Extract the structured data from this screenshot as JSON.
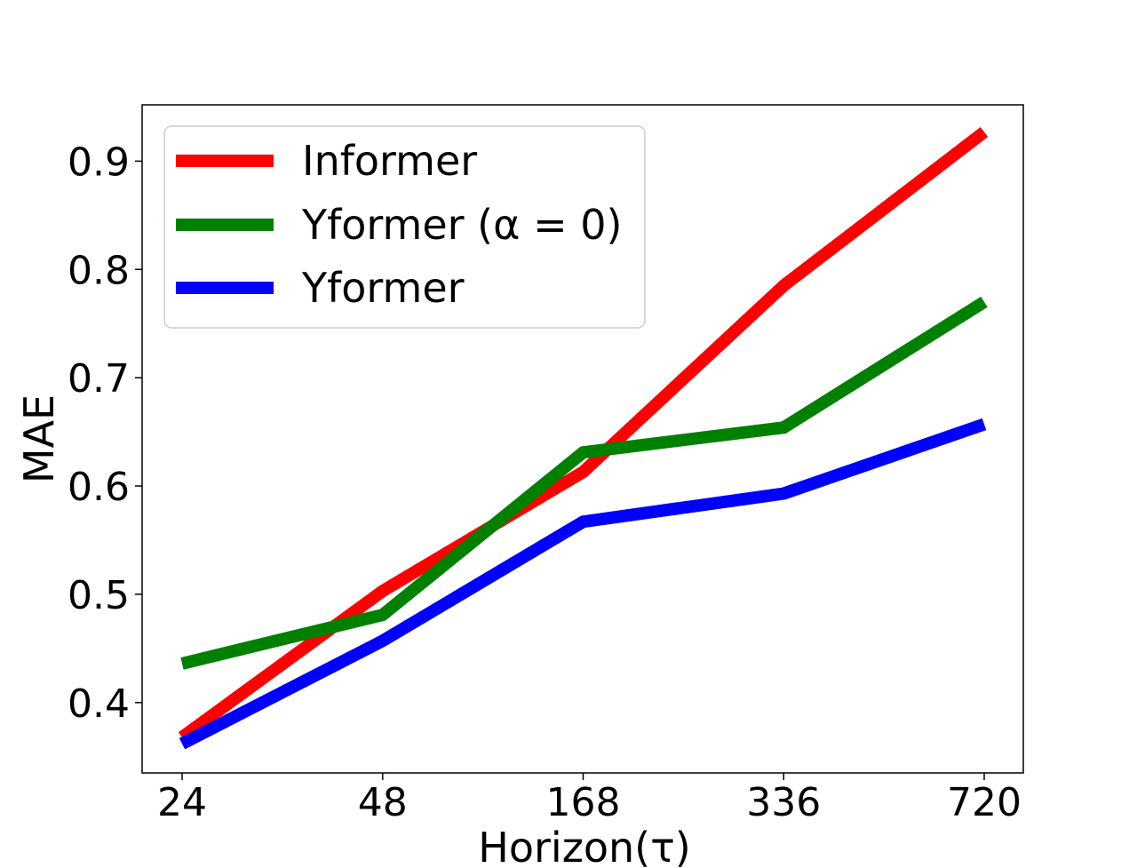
{
  "chart_data": {
    "type": "line",
    "categories": [
      "24",
      "48",
      "168",
      "336",
      "720"
    ],
    "xlabel": "Horizon(τ)",
    "ylabel": "MAE",
    "ylim": [
      0.335,
      0.952
    ],
    "yticks": [
      "0.4",
      "0.5",
      "0.6",
      "0.7",
      "0.8",
      "0.9"
    ],
    "ytick_values": [
      0.4,
      0.5,
      0.6,
      0.7,
      0.8,
      0.9
    ],
    "legend_position": "top-left",
    "grid": false,
    "series": [
      {
        "name": "Informer",
        "color": "#ff0000",
        "values": [
          0.368,
          0.503,
          0.613,
          0.785,
          0.927
        ]
      },
      {
        "name": "Yformer (α = 0)",
        "color": "#008000",
        "values": [
          0.436,
          0.481,
          0.631,
          0.654,
          0.77
        ]
      },
      {
        "name": "Yformer",
        "color": "#0000ff",
        "values": [
          0.362,
          0.457,
          0.567,
          0.593,
          0.657
        ]
      }
    ]
  }
}
